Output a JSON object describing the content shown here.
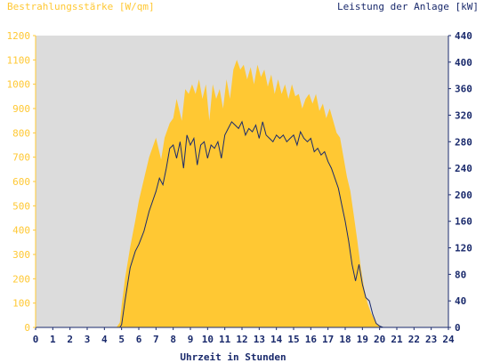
{
  "chart_data": {
    "type": "area",
    "ylabel_left": "Bestrahlungsstärke [W/qm]",
    "ylabel_right": "Leistung der Anlage [kW]",
    "xlabel": "Uhrzeit in Stunden",
    "x_ticks": [
      "0",
      "1",
      "2",
      "3",
      "4",
      "5",
      "6",
      "7",
      "8",
      "9",
      "10",
      "11",
      "12",
      "13",
      "14",
      "15",
      "16",
      "17",
      "18",
      "19",
      "20",
      "21",
      "22",
      "23",
      "24"
    ],
    "y_left_ticks": [
      "0",
      "100",
      "200",
      "300",
      "400",
      "500",
      "600",
      "700",
      "800",
      "900",
      "1000",
      "1100",
      "1200"
    ],
    "y_right_ticks": [
      "0",
      "40",
      "80",
      "120",
      "160",
      "200",
      "240",
      "280",
      "320",
      "360",
      "400",
      "440"
    ],
    "xlim": [
      0,
      24
    ],
    "ylim_left": [
      0,
      1200
    ],
    "ylim_right": [
      0,
      440
    ],
    "colors": {
      "irradiance_fill": "#ffc833",
      "power_line": "#1a2a6c",
      "plot_background": "#dcdcdc",
      "left_axis_text": "#ffc833",
      "right_axis_text": "#1a2a6c",
      "axis_line": "#1a2a6c"
    },
    "series": [
      {
        "axis": "left",
        "style": "area",
        "x": [
          0,
          4.7,
          4.9,
          5.0,
          5.2,
          5.5,
          5.8,
          6.0,
          6.3,
          6.6,
          7.0,
          7.3,
          7.5,
          7.8,
          8.0,
          8.2,
          8.5,
          8.7,
          8.9,
          9.1,
          9.3,
          9.5,
          9.7,
          9.9,
          10.1,
          10.3,
          10.5,
          10.7,
          10.9,
          11.1,
          11.3,
          11.5,
          11.7,
          11.9,
          12.1,
          12.3,
          12.5,
          12.7,
          12.9,
          13.1,
          13.3,
          13.5,
          13.7,
          13.9,
          14.1,
          14.3,
          14.5,
          14.7,
          14.9,
          15.1,
          15.3,
          15.5,
          15.7,
          15.9,
          16.1,
          16.3,
          16.5,
          16.7,
          16.9,
          17.1,
          17.3,
          17.5,
          17.7,
          17.9,
          18.1,
          18.3,
          18.5,
          18.7,
          18.9,
          19.1,
          19.3,
          19.5,
          19.7,
          19.9,
          20.1,
          20.3,
          20.5,
          24
        ],
        "values": [
          0,
          0,
          20,
          90,
          200,
          330,
          440,
          520,
          610,
          700,
          780,
          690,
          780,
          840,
          860,
          940,
          850,
          980,
          960,
          1000,
          960,
          1020,
          940,
          1000,
          850,
          1000,
          940,
          980,
          900,
          1020,
          940,
          1060,
          1100,
          1060,
          1080,
          1020,
          1070,
          1000,
          1080,
          1030,
          1060,
          990,
          1040,
          960,
          1020,
          960,
          1000,
          940,
          1000,
          950,
          960,
          900,
          940,
          960,
          920,
          960,
          890,
          920,
          860,
          900,
          850,
          800,
          780,
          700,
          620,
          560,
          460,
          360,
          250,
          160,
          100,
          60,
          30,
          10,
          3,
          0,
          0,
          0
        ]
      },
      {
        "axis": "right",
        "style": "line",
        "x": [
          0,
          4.9,
          5.0,
          5.2,
          5.5,
          5.8,
          6.0,
          6.3,
          6.6,
          7.0,
          7.2,
          7.4,
          7.6,
          7.8,
          8.0,
          8.2,
          8.4,
          8.6,
          8.8,
          9.0,
          9.2,
          9.4,
          9.6,
          9.8,
          10.0,
          10.2,
          10.4,
          10.6,
          10.8,
          11.0,
          11.2,
          11.4,
          11.6,
          11.8,
          12.0,
          12.2,
          12.4,
          12.6,
          12.8,
          13.0,
          13.2,
          13.4,
          13.6,
          13.8,
          14.0,
          14.2,
          14.4,
          14.6,
          14.8,
          15.0,
          15.2,
          15.4,
          15.6,
          15.8,
          16.0,
          16.2,
          16.4,
          16.6,
          16.8,
          17.0,
          17.2,
          17.4,
          17.6,
          17.8,
          18.0,
          18.2,
          18.4,
          18.6,
          18.8,
          19.0,
          19.2,
          19.4,
          19.6,
          19.8,
          20.0,
          20.2,
          20.4,
          24
        ],
        "values": [
          0,
          0,
          4,
          40,
          90,
          115,
          125,
          145,
          175,
          205,
          225,
          215,
          240,
          270,
          275,
          255,
          280,
          240,
          290,
          275,
          285,
          245,
          275,
          280,
          255,
          275,
          270,
          280,
          255,
          290,
          300,
          310,
          305,
          300,
          310,
          290,
          300,
          295,
          305,
          285,
          310,
          290,
          285,
          280,
          290,
          285,
          290,
          280,
          285,
          290,
          275,
          295,
          285,
          280,
          285,
          265,
          270,
          260,
          265,
          250,
          240,
          225,
          210,
          185,
          160,
          130,
          95,
          70,
          95,
          65,
          45,
          40,
          20,
          6,
          2,
          0,
          0,
          0
        ]
      }
    ]
  }
}
